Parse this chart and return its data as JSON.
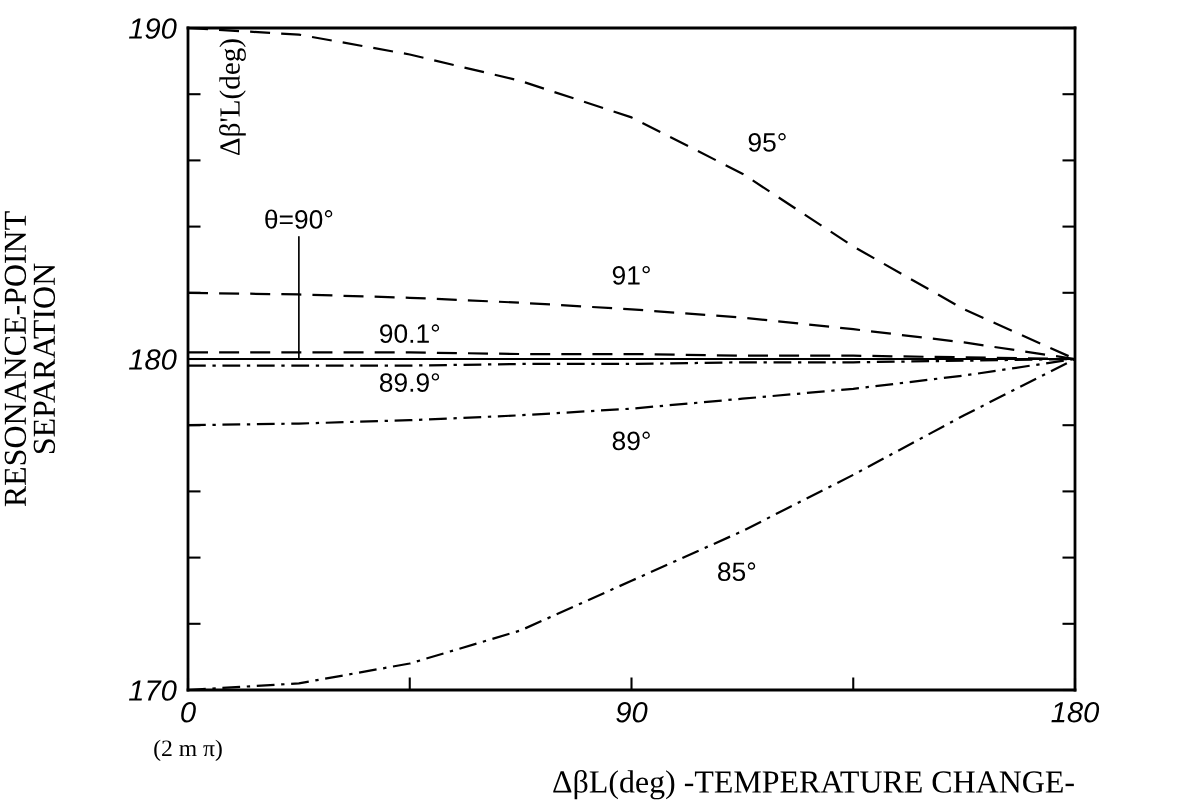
{
  "chart_data": {
    "type": "line",
    "xlabel": "ΔβL(deg) -TEMPERATURE CHANGE-",
    "ylabel": "RESONANCE-POINT\nSEPARATION",
    "x": [
      0,
      22.5,
      45,
      67.5,
      90,
      112.5,
      135,
      157.5,
      180
    ],
    "series": [
      {
        "name": "95°",
        "color": "#000000",
        "line_style": "dashed",
        "values": [
          190,
          189.8,
          189.2,
          188.4,
          187.3,
          185.6,
          183.4,
          181.5,
          180
        ]
      },
      {
        "name": "91°",
        "color": "#000000",
        "line_style": "dashed",
        "values": [
          182,
          181.95,
          181.85,
          181.7,
          181.5,
          181.25,
          180.9,
          180.5,
          180
        ]
      },
      {
        "name": "90.1°",
        "color": "#000000",
        "line_style": "dashed",
        "values": [
          180.2,
          180.2,
          180.2,
          180.15,
          180.15,
          180.1,
          180.1,
          180.05,
          180
        ]
      },
      {
        "name": "θ=90°",
        "color": "#000000",
        "line_style": "solid",
        "values": [
          180,
          180,
          180,
          180,
          180,
          180,
          180,
          180,
          180
        ]
      },
      {
        "name": "89.9°",
        "color": "#000000",
        "line_style": "dashdot",
        "values": [
          179.8,
          179.8,
          179.8,
          179.85,
          179.85,
          179.9,
          179.9,
          179.95,
          180
        ]
      },
      {
        "name": "89°",
        "color": "#000000",
        "line_style": "dashdot",
        "values": [
          178,
          178.05,
          178.15,
          178.3,
          178.5,
          178.8,
          179.1,
          179.5,
          180
        ]
      },
      {
        "name": "85°",
        "color": "#000000",
        "line_style": "dashdot",
        "values": [
          170,
          170.2,
          170.8,
          171.8,
          173.3,
          174.8,
          176.5,
          178.3,
          180
        ]
      }
    ],
    "annotations": [
      "Δβ'L(deg)",
      "(2 m π)"
    ],
    "xlim": [
      0,
      180
    ],
    "ylim": [
      170,
      190
    ],
    "xticks": [
      0,
      {
        "value": 45,
        "label": null
      },
      90,
      {
        "value": 135,
        "label": null
      },
      180
    ],
    "yticks": [
      170,
      {
        "value": 172,
        "label": null
      },
      {
        "value": 174,
        "label": null
      },
      {
        "value": 176,
        "label": null
      },
      {
        "value": 178,
        "label": null
      },
      180,
      {
        "value": 182,
        "label": null
      },
      {
        "value": 184,
        "label": null
      },
      {
        "value": 186,
        "label": null
      },
      {
        "value": 188,
        "label": null
      },
      190
    ],
    "grid": false,
    "legend": false,
    "marker": "none"
  }
}
